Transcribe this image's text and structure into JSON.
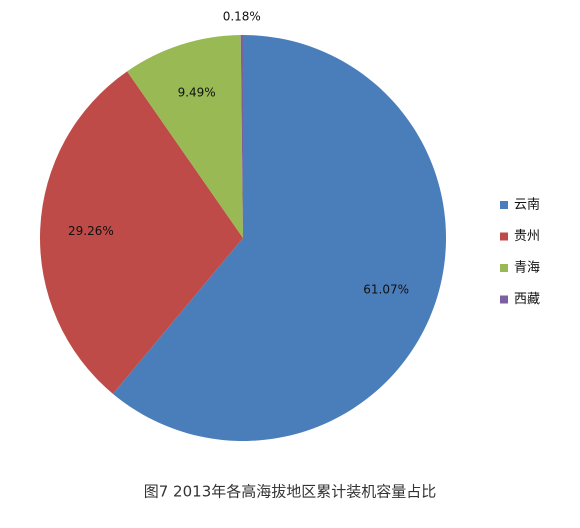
{
  "chart_data": {
    "type": "pie",
    "caption": "图7 2013年各高海拔地区累计装机容量占比",
    "categories": [
      "云南",
      "贵州",
      "青海",
      "西藏"
    ],
    "values": [
      61.07,
      29.26,
      9.49,
      0.18
    ],
    "value_labels": [
      "61.07%",
      "29.26%",
      "9.49%",
      "0.18%"
    ],
    "colors": [
      "#4a7ebb",
      "#be4b48",
      "#98b954",
      "#7d60a0"
    ],
    "legend": "right"
  }
}
